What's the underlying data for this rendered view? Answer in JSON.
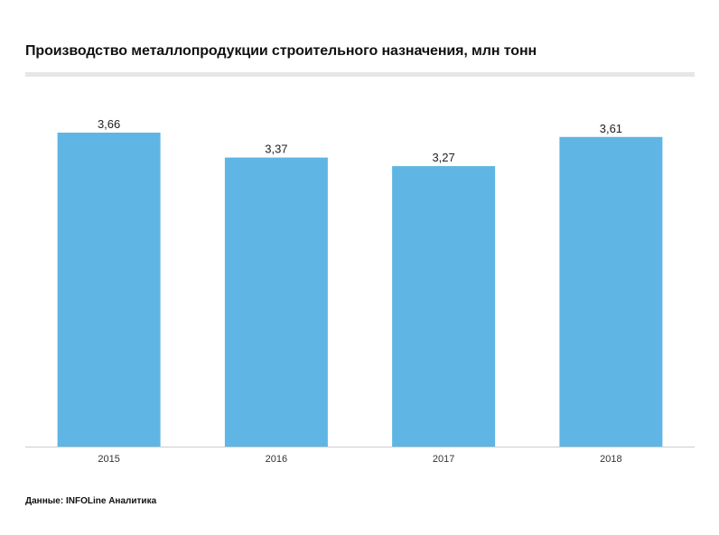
{
  "chart_data": {
    "type": "bar",
    "title": "Производство металлопродукции строительного назначения, млн тонн",
    "categories": [
      "2015",
      "2016",
      "2017",
      "2018"
    ],
    "values": [
      3.66,
      3.37,
      3.27,
      3.61
    ],
    "value_labels": [
      "3,66",
      "3,37",
      "3,27",
      "3,61"
    ],
    "xlabel": "",
    "ylabel": "",
    "ylim": [
      0,
      3.66
    ],
    "grid": false,
    "bar_color": "#5fb6e4",
    "axis_color": "#cccccc"
  },
  "source_note": "Данные: INFOLine Аналитика"
}
